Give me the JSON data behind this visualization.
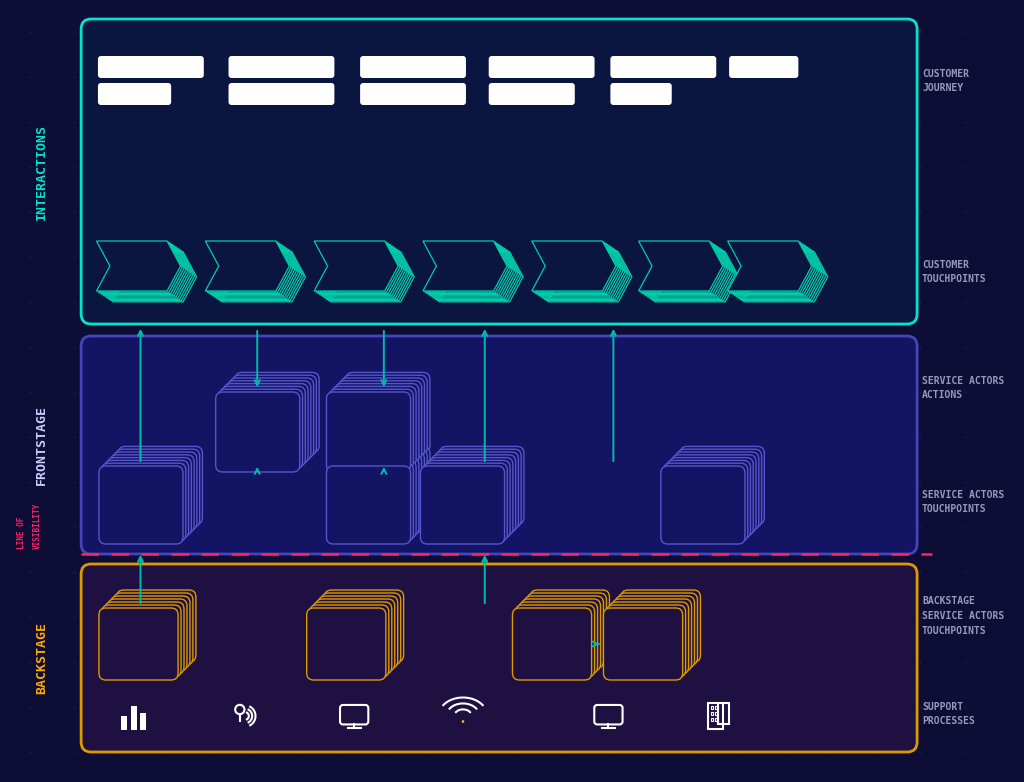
{
  "bg_color": "#0d0d35",
  "interactions_bg": "#0a1540",
  "interactions_border": "#00e5cc",
  "frontstage_bg": "#141464",
  "frontstage_border": "#4444bb",
  "backstage_bg": "#1e1040",
  "backstage_border": "#dd9900",
  "line_of_visibility_color": "#ff2266",
  "interactions_label": "INTERACTIONS",
  "interactions_label_color": "#00e5cc",
  "frontstage_label": "FRONTSTAGE",
  "frontstage_label_color": "#ccccff",
  "line_visibility_label_color": "#ff2266",
  "backstage_label": "BACKSTAGE",
  "backstage_label_color": "#ffaa00",
  "customer_journey_label": "CUSTOMER\nJOURNEY",
  "customer_touchpoints_label": "CUSTOMER\nTOUCHPOINTS",
  "service_actors_actions_label": "SERVICE ACTORS\nACTIONS",
  "service_actors_touchpoints_label": "SERVICE ACTORS\nTOUCHPOINTS",
  "backstage_service_label": "BACKSTAGE\nSERVICE ACTORS\nTOUCHPOINTS",
  "support_processes_label": "SUPPORT\nPROCESSES",
  "label_color": "#9999bb",
  "arrow_color": "#00bbaa",
  "blue_stack_face": "#141464",
  "blue_stack_edge": "#5555cc",
  "orange_stack_face": "#1e1040",
  "orange_stack_edge": "#dd9900",
  "chevron_color": "#00ccaa",
  "chevron_fill": "#0a1540",
  "journey_bar_color": "#ffffff"
}
